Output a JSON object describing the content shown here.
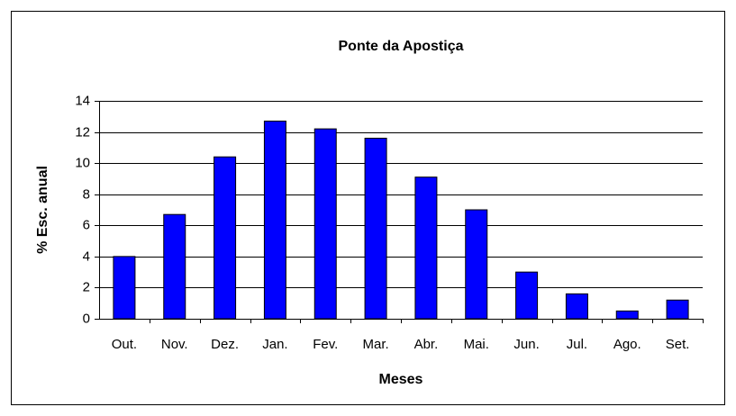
{
  "chart_data": {
    "type": "bar",
    "title": "Ponte da Apostiça",
    "xlabel": "Meses",
    "ylabel": "% Esc. anual",
    "categories": [
      "Out.",
      "Nov.",
      "Dez.",
      "Jan.",
      "Fev.",
      "Mar.",
      "Abr.",
      "Mai.",
      "Jun.",
      "Jul.",
      "Ago.",
      "Set."
    ],
    "values": [
      4.0,
      6.7,
      10.4,
      12.7,
      12.2,
      11.6,
      9.1,
      7.0,
      3.0,
      1.6,
      0.5,
      1.2
    ],
    "color": "#0000ff",
    "ylim": [
      0,
      14
    ],
    "yticks": [
      0,
      2,
      4,
      6,
      8,
      10,
      12,
      14
    ],
    "grid": true
  }
}
